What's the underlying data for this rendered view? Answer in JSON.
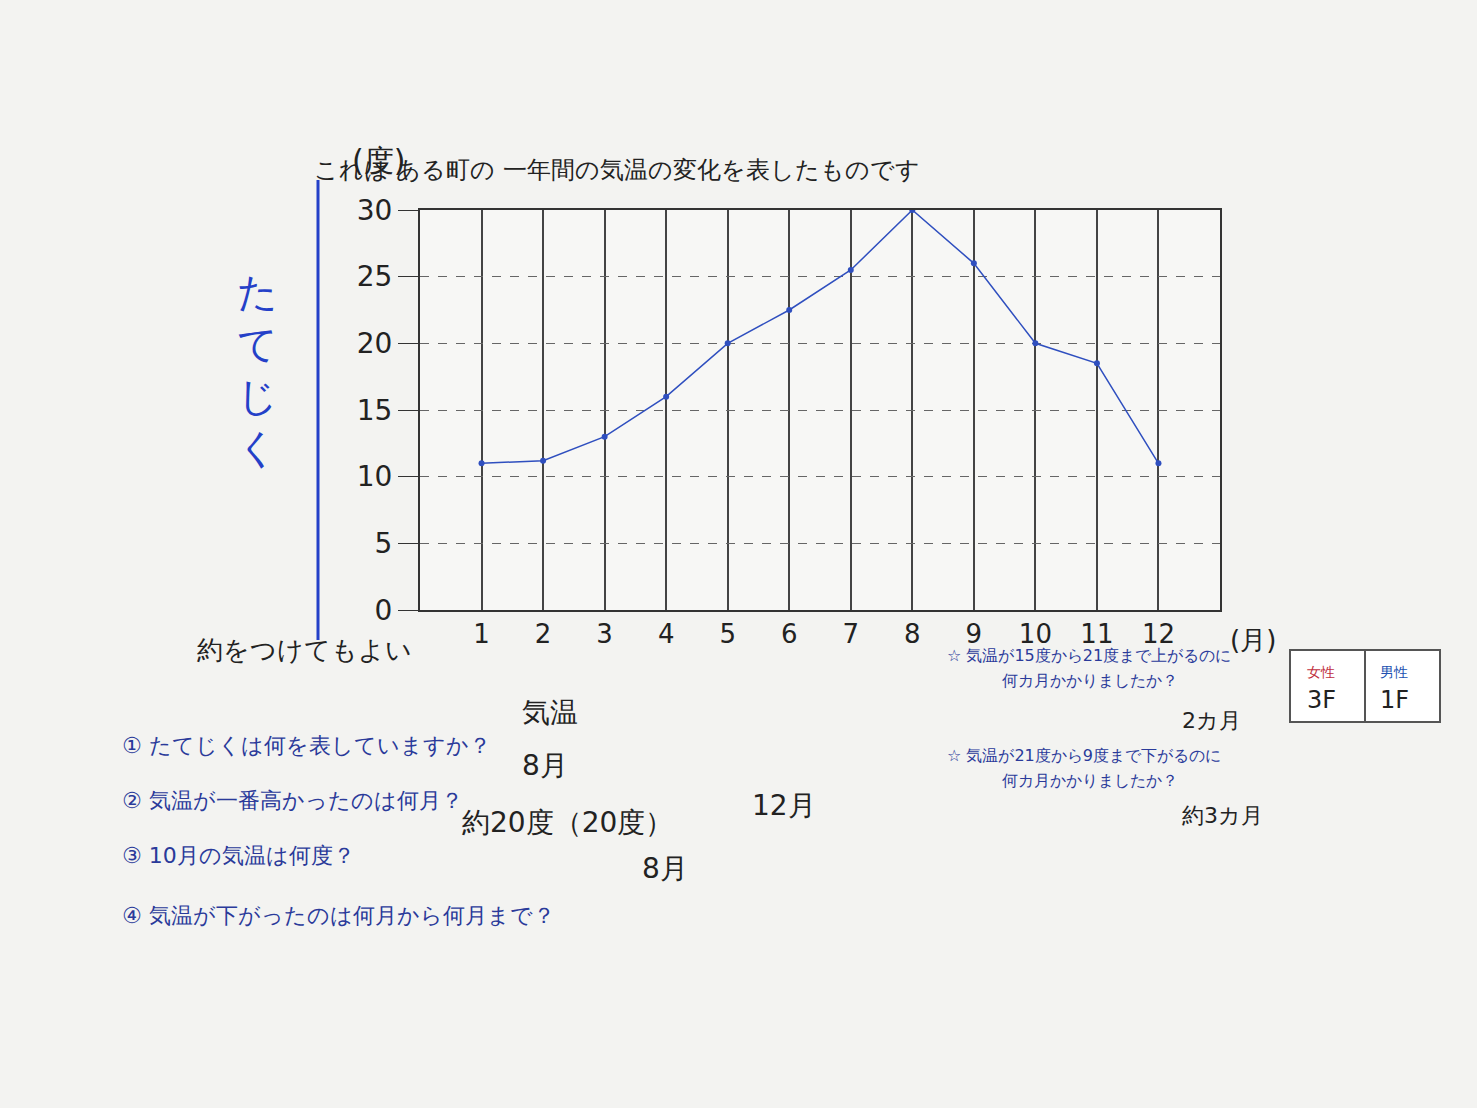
{
  "chart_data": {
    "type": "line",
    "title": "これは ある町の 一年間の気温の変化を表したものです",
    "x_label": "(月)",
    "y_label": "(度)",
    "x": [
      1,
      2,
      3,
      4,
      5,
      6,
      7,
      8,
      9,
      10,
      11,
      12
    ],
    "values": [
      11,
      11.2,
      13,
      16,
      20,
      22.5,
      25.5,
      30,
      26,
      20,
      18.5,
      11
    ],
    "color": "#2f4fbf",
    "marker": "circle",
    "line_style": "solid",
    "xlim": [
      0,
      13
    ],
    "xticks": [
      1,
      2,
      3,
      4,
      5,
      6,
      7,
      8,
      9,
      10,
      11,
      12
    ],
    "ylim": [
      0,
      30
    ],
    "yticks": [
      0,
      5,
      10,
      15,
      20,
      25,
      30
    ],
    "grid": true,
    "annotations": [
      "たてじく",
      "約をつけてもよい",
      "① たてじくは何を表していますか？",
      "気温",
      "② 気温が一番高かったのは何月？",
      "8月",
      "③ 10月の気温は何度？",
      "約20度（20度）",
      "④ 気温が下がったのは何月から何月まで？",
      "8月",
      "12月",
      "☆ 気温が15度から21度まで上がるのに",
      "何カ月かかりましたか？",
      "2カ月",
      "☆ 気温が21度から9度まで下がるのに",
      "何カ月かかりましたか？",
      "約3カ月",
      "女性",
      "3F",
      "男性",
      "1F"
    ]
  }
}
